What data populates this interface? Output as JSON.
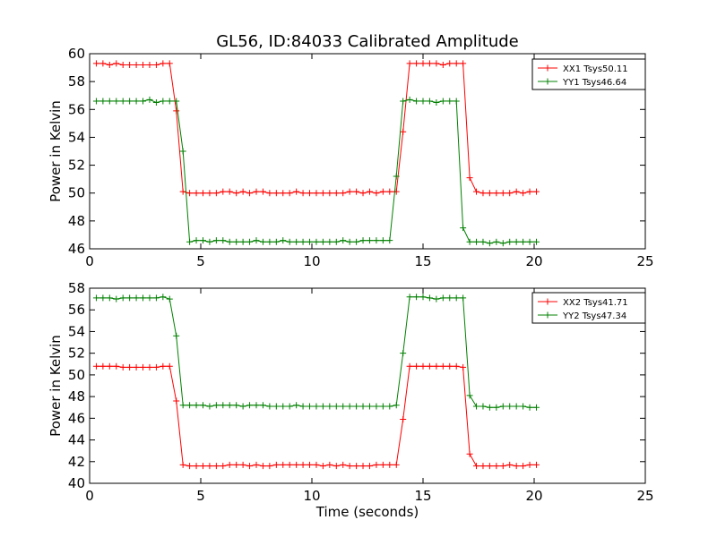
{
  "title": "GL56, ID:84033 Calibrated Amplitude",
  "chart_data": [
    {
      "type": "line",
      "title": "GL56, ID:84033 Calibrated Amplitude",
      "xlabel": "",
      "ylabel": "Power in Kelvin",
      "xlim": [
        0,
        25
      ],
      "ylim": [
        46,
        60
      ],
      "xticks": [
        0,
        5,
        10,
        15,
        20,
        25
      ],
      "yticks": [
        46,
        48,
        50,
        52,
        54,
        56,
        58,
        60
      ],
      "grid": false,
      "legend": "top-right",
      "x": [
        0.3,
        0.6,
        0.9,
        1.2,
        1.5,
        1.8,
        2.1,
        2.4,
        2.7,
        3.0,
        3.3,
        3.6,
        3.9,
        4.2,
        4.5,
        4.8,
        5.1,
        5.4,
        5.7,
        6.0,
        6.3,
        6.6,
        6.9,
        7.2,
        7.5,
        7.8,
        8.1,
        8.4,
        8.7,
        9.0,
        9.3,
        9.6,
        9.9,
        10.2,
        10.5,
        10.8,
        11.1,
        11.4,
        11.7,
        12.0,
        12.3,
        12.6,
        12.9,
        13.2,
        13.5,
        13.8,
        14.1,
        14.4,
        14.7,
        15.0,
        15.3,
        15.6,
        15.9,
        16.2,
        16.5,
        16.8,
        17.1,
        17.4,
        17.7,
        18.0,
        18.3,
        18.6,
        18.9,
        19.2,
        19.5,
        19.8,
        20.1
      ],
      "series": [
        {
          "name": "XX1 Tsys50.11",
          "color": "#ff0000",
          "values": [
            59.3,
            59.3,
            59.2,
            59.3,
            59.2,
            59.2,
            59.2,
            59.2,
            59.2,
            59.2,
            59.3,
            59.3,
            55.9,
            50.1,
            50.0,
            50.0,
            50.0,
            50.0,
            50.0,
            50.1,
            50.1,
            50.0,
            50.1,
            50.0,
            50.1,
            50.1,
            50.0,
            50.0,
            50.0,
            50.0,
            50.1,
            50.0,
            50.0,
            50.0,
            50.0,
            50.0,
            50.0,
            50.0,
            50.1,
            50.1,
            50.0,
            50.1,
            50.0,
            50.1,
            50.1,
            50.1,
            54.4,
            59.3,
            59.3,
            59.3,
            59.3,
            59.3,
            59.2,
            59.3,
            59.3,
            59.3,
            51.1,
            50.1,
            50.0,
            50.0,
            50.0,
            50.0,
            50.0,
            50.1,
            50.0,
            50.1,
            50.1
          ]
        },
        {
          "name": "YY1 Tsys46.64",
          "color": "#008000",
          "values": [
            56.6,
            56.6,
            56.6,
            56.6,
            56.6,
            56.6,
            56.6,
            56.6,
            56.7,
            56.5,
            56.6,
            56.6,
            56.6,
            53.0,
            46.5,
            46.6,
            46.6,
            46.5,
            46.6,
            46.6,
            46.5,
            46.5,
            46.5,
            46.5,
            46.6,
            46.5,
            46.5,
            46.5,
            46.6,
            46.5,
            46.5,
            46.5,
            46.5,
            46.5,
            46.5,
            46.5,
            46.5,
            46.6,
            46.5,
            46.5,
            46.6,
            46.6,
            46.6,
            46.6,
            46.6,
            51.2,
            56.6,
            56.7,
            56.6,
            56.6,
            56.6,
            56.5,
            56.6,
            56.6,
            56.6,
            47.5,
            46.5,
            46.5,
            46.5,
            46.4,
            46.5,
            46.4,
            46.5,
            46.5,
            46.5,
            46.5,
            46.5
          ]
        }
      ]
    },
    {
      "type": "line",
      "title": "",
      "xlabel": "Time (seconds)",
      "ylabel": "Power in Kelvin",
      "xlim": [
        0,
        25
      ],
      "ylim": [
        40,
        58
      ],
      "xticks": [
        0,
        5,
        10,
        15,
        20,
        25
      ],
      "yticks": [
        40,
        42,
        44,
        46,
        48,
        50,
        52,
        54,
        56,
        58
      ],
      "grid": false,
      "legend": "top-right",
      "x": [
        0.3,
        0.6,
        0.9,
        1.2,
        1.5,
        1.8,
        2.1,
        2.4,
        2.7,
        3.0,
        3.3,
        3.6,
        3.9,
        4.2,
        4.5,
        4.8,
        5.1,
        5.4,
        5.7,
        6.0,
        6.3,
        6.6,
        6.9,
        7.2,
        7.5,
        7.8,
        8.1,
        8.4,
        8.7,
        9.0,
        9.3,
        9.6,
        9.9,
        10.2,
        10.5,
        10.8,
        11.1,
        11.4,
        11.7,
        12.0,
        12.3,
        12.6,
        12.9,
        13.2,
        13.5,
        13.8,
        14.1,
        14.4,
        14.7,
        15.0,
        15.3,
        15.6,
        15.9,
        16.2,
        16.5,
        16.8,
        17.1,
        17.4,
        17.7,
        18.0,
        18.3,
        18.6,
        18.9,
        19.2,
        19.5,
        19.8,
        20.1
      ],
      "series": [
        {
          "name": "XX2 Tsys41.71",
          "color": "#ff0000",
          "values": [
            50.8,
            50.8,
            50.8,
            50.8,
            50.7,
            50.7,
            50.7,
            50.7,
            50.7,
            50.7,
            50.8,
            50.8,
            47.6,
            41.7,
            41.6,
            41.6,
            41.6,
            41.6,
            41.6,
            41.6,
            41.7,
            41.7,
            41.7,
            41.6,
            41.7,
            41.6,
            41.6,
            41.7,
            41.7,
            41.7,
            41.7,
            41.7,
            41.7,
            41.7,
            41.6,
            41.7,
            41.6,
            41.7,
            41.6,
            41.6,
            41.6,
            41.6,
            41.7,
            41.7,
            41.7,
            41.7,
            45.9,
            50.8,
            50.8,
            50.8,
            50.8,
            50.8,
            50.8,
            50.8,
            50.8,
            50.7,
            42.7,
            41.6,
            41.6,
            41.6,
            41.6,
            41.6,
            41.7,
            41.6,
            41.6,
            41.7,
            41.7
          ]
        },
        {
          "name": "YY2 Tsys47.34",
          "color": "#008000",
          "values": [
            57.1,
            57.1,
            57.1,
            57.0,
            57.1,
            57.1,
            57.1,
            57.1,
            57.1,
            57.1,
            57.2,
            57.0,
            53.6,
            47.2,
            47.2,
            47.2,
            47.2,
            47.1,
            47.2,
            47.2,
            47.2,
            47.2,
            47.1,
            47.2,
            47.2,
            47.2,
            47.1,
            47.1,
            47.1,
            47.1,
            47.2,
            47.1,
            47.1,
            47.1,
            47.1,
            47.1,
            47.1,
            47.1,
            47.1,
            47.1,
            47.1,
            47.1,
            47.1,
            47.1,
            47.1,
            47.2,
            52.0,
            57.2,
            57.2,
            57.2,
            57.1,
            57.0,
            57.1,
            57.1,
            57.1,
            57.1,
            48.1,
            47.1,
            47.1,
            47.0,
            47.0,
            47.1,
            47.1,
            47.1,
            47.1,
            47.0,
            47.0
          ]
        }
      ]
    }
  ]
}
